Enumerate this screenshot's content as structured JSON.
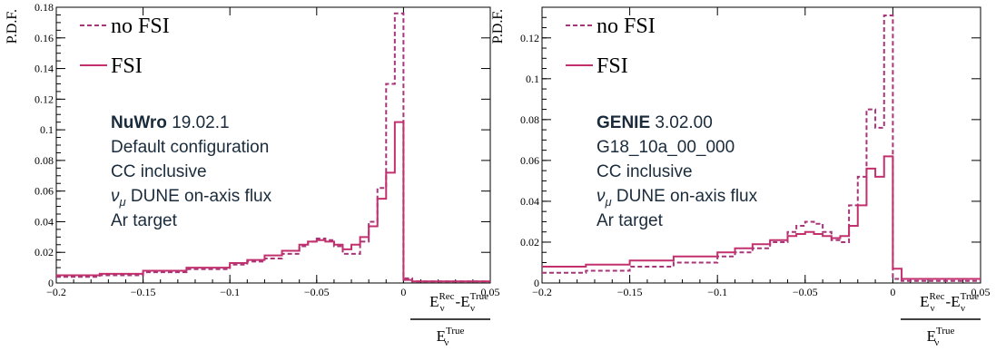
{
  "chart_data": [
    {
      "type": "line",
      "ylabel": "P.D.F.",
      "xlabel": {
        "num_left": "E",
        "num_left_sub": "ν",
        "num_left_sup": "Rec",
        "minus": "-",
        "num_right": "E",
        "num_right_sub": "ν",
        "num_right_sup": "True",
        "den": "E",
        "den_sub": "ν",
        "den_sup": "True"
      },
      "xlim": [
        -0.2,
        0.05
      ],
      "ylim": [
        0,
        0.18
      ],
      "xticks": [
        "−0.2",
        "−0.15",
        "−0.1",
        "−0.05",
        "0",
        "0.05"
      ],
      "yticks": [
        "0",
        "0.02",
        "0.04",
        "0.06",
        "0.08",
        "0.1",
        "0.12",
        "0.14",
        "0.16",
        "0.18"
      ],
      "legend": {
        "placement": "top-left",
        "entries": [
          "no FSI",
          "FSI"
        ]
      },
      "annotation": {
        "generator": "NuWro",
        "version": "19.02.1",
        "lines": [
          "Default configuration",
          "CC inclusive",
          "DUNE on-axis flux",
          "Ar target"
        ],
        "nu": "ν",
        "nu_sub": "μ"
      },
      "series": [
        {
          "name": "no FSI",
          "style": "dashed",
          "color": "#a8357a",
          "x": [
            -0.2,
            -0.175,
            -0.15,
            -0.125,
            -0.1,
            -0.09,
            -0.08,
            -0.07,
            -0.06,
            -0.055,
            -0.05,
            -0.045,
            -0.04,
            -0.035,
            -0.03,
            -0.025,
            -0.02,
            -0.015,
            -0.01,
            -0.005,
            0,
            0.005,
            0.05
          ],
          "y": [
            0.004,
            0.005,
            0.007,
            0.009,
            0.012,
            0.014,
            0.016,
            0.019,
            0.024,
            0.027,
            0.029,
            0.028,
            0.024,
            0.019,
            0.019,
            0.027,
            0.04,
            0.062,
            0.13,
            0.176,
            0.003,
            0.001,
            0.001
          ]
        },
        {
          "name": "FSI",
          "style": "solid",
          "color": "#c2306e",
          "x": [
            -0.2,
            -0.175,
            -0.15,
            -0.125,
            -0.1,
            -0.09,
            -0.08,
            -0.07,
            -0.06,
            -0.055,
            -0.05,
            -0.045,
            -0.04,
            -0.035,
            -0.03,
            -0.025,
            -0.02,
            -0.015,
            -0.01,
            -0.005,
            0,
            0.005,
            0.05
          ],
          "y": [
            0.005,
            0.006,
            0.008,
            0.01,
            0.013,
            0.015,
            0.018,
            0.021,
            0.025,
            0.027,
            0.028,
            0.027,
            0.025,
            0.022,
            0.025,
            0.03,
            0.037,
            0.055,
            0.072,
            0.105,
            0.002,
            0.001,
            0.001
          ]
        }
      ]
    },
    {
      "type": "line",
      "ylabel": "P.D.F.",
      "xlabel": {
        "num_left": "E",
        "num_left_sub": "ν",
        "num_left_sup": "Rec",
        "minus": "-",
        "num_right": "E",
        "num_right_sub": "ν",
        "num_right_sup": "True",
        "den": "E",
        "den_sub": "ν",
        "den_sup": "True"
      },
      "xlim": [
        -0.2,
        0.05
      ],
      "ylim": [
        0,
        0.135
      ],
      "xticks": [
        "−0.2",
        "−0.15",
        "−0.1",
        "−0.05",
        "0",
        "0.05"
      ],
      "yticks": [
        "0",
        "0.02",
        "0.04",
        "0.06",
        "0.08",
        "0.1",
        "0.12"
      ],
      "legend": {
        "placement": "top-left",
        "entries": [
          "no FSI",
          "FSI"
        ]
      },
      "annotation": {
        "generator": "GENIE",
        "version": "3.02.00",
        "lines": [
          "G18_10a_00_000",
          "CC inclusive",
          "DUNE on-axis flux",
          "Ar target"
        ],
        "nu": "ν",
        "nu_sub": "μ"
      },
      "series": [
        {
          "name": "no FSI",
          "style": "dashed",
          "color": "#a8357a",
          "x": [
            -0.2,
            -0.175,
            -0.15,
            -0.125,
            -0.1,
            -0.09,
            -0.08,
            -0.07,
            -0.06,
            -0.055,
            -0.05,
            -0.045,
            -0.04,
            -0.035,
            -0.03,
            -0.025,
            -0.02,
            -0.015,
            -0.01,
            -0.005,
            0,
            0.005,
            0.05
          ],
          "y": [
            0.005,
            0.006,
            0.008,
            0.01,
            0.013,
            0.015,
            0.017,
            0.02,
            0.025,
            0.028,
            0.03,
            0.029,
            0.025,
            0.021,
            0.02,
            0.038,
            0.052,
            0.085,
            0.076,
            0.131,
            0.002,
            0.001,
            0.001
          ]
        },
        {
          "name": "FSI",
          "style": "solid",
          "color": "#c2306e",
          "x": [
            -0.2,
            -0.175,
            -0.15,
            -0.125,
            -0.1,
            -0.09,
            -0.08,
            -0.07,
            -0.06,
            -0.055,
            -0.05,
            -0.045,
            -0.04,
            -0.035,
            -0.03,
            -0.025,
            -0.02,
            -0.015,
            -0.01,
            -0.005,
            0,
            0.005,
            0.05
          ],
          "y": [
            0.008,
            0.009,
            0.011,
            0.013,
            0.015,
            0.017,
            0.019,
            0.021,
            0.023,
            0.024,
            0.025,
            0.024,
            0.023,
            0.022,
            0.023,
            0.028,
            0.038,
            0.056,
            0.052,
            0.062,
            0.007,
            0.002,
            0.001
          ]
        }
      ]
    }
  ]
}
